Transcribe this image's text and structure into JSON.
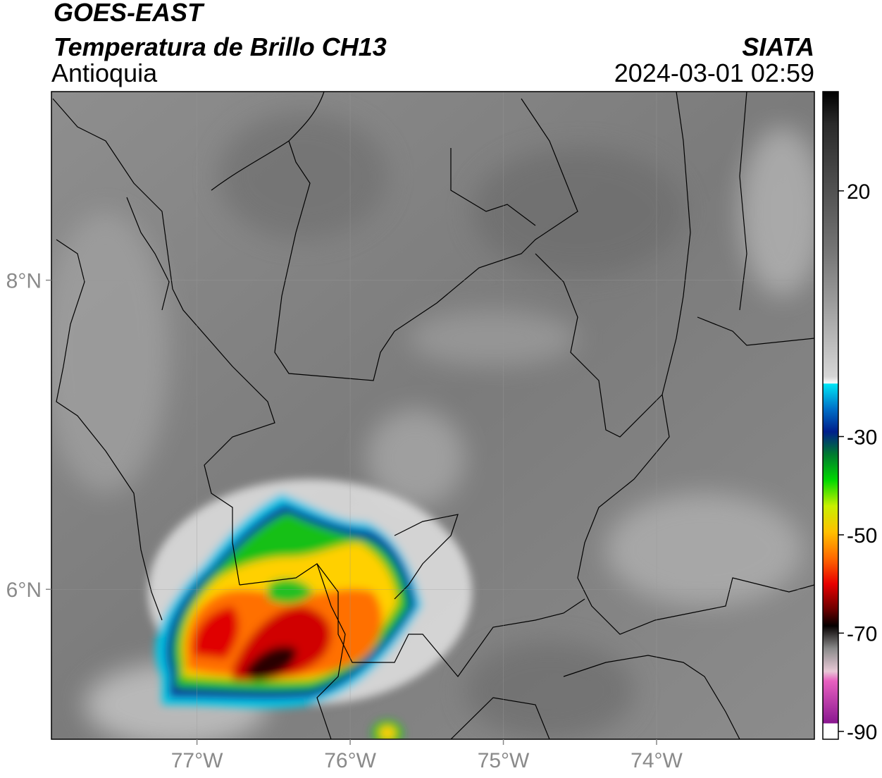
{
  "header": {
    "title": "GOES-EAST",
    "subtitle": "Temperatura de Brillo CH13",
    "region": "Antioquia",
    "source": "SIATA",
    "datetime": "2024-03-01 02:59"
  },
  "map": {
    "xlim": [
      -77.95,
      -72.97
    ],
    "ylim": [
      5.03,
      9.22
    ],
    "xticks": [
      {
        "value": -77,
        "label": "77°W"
      },
      {
        "value": -76,
        "label": "76°W"
      },
      {
        "value": -75,
        "label": "75°W"
      },
      {
        "value": -74,
        "label": "74°W"
      }
    ],
    "yticks": [
      {
        "value": 8,
        "label": "8°N"
      },
      {
        "value": 6,
        "label": "6°N"
      }
    ]
  },
  "colorbar": {
    "range": [
      -91.6,
      40.2
    ],
    "ticks": [
      20,
      -30,
      -50,
      -70,
      -90
    ]
  }
}
